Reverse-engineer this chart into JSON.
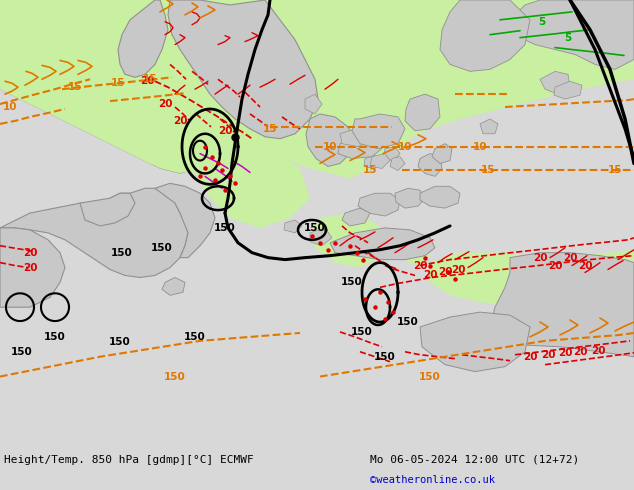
{
  "title_left": "Height/Temp. 850 hPa [gdmp][°C] ECMWF",
  "title_right": "Mo 06-05-2024 12:00 UTC (12+72)",
  "credit": "©weatheronline.co.uk",
  "bg_color": "#d8d8d8",
  "land_color": "#c8c8c8",
  "land_edge": "#909090",
  "green_color": "#c8f0a0",
  "white_color": "#f0f0f0",
  "fig_width": 6.34,
  "fig_height": 4.9,
  "dpi": 100
}
